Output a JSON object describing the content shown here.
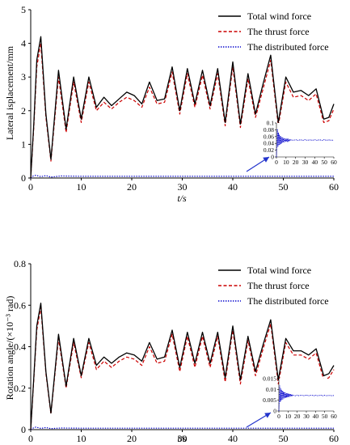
{
  "chart_data": [
    {
      "type": "line",
      "title": "",
      "xlabel": "t/s",
      "ylabel": "Lateral isplacement/mm",
      "xlim": [
        0,
        60
      ],
      "ylim": [
        0,
        5
      ],
      "xticks": [
        "0",
        "10",
        "20",
        "30",
        "40",
        "50",
        "60"
      ],
      "yticks": [
        "0",
        "1",
        "2",
        "3",
        "4",
        "5"
      ],
      "legend_position": "top-right",
      "grid": false,
      "series": [
        {
          "name": "Total wind force",
          "color": "#000000",
          "style": "solid",
          "x": [
            0,
            0.6,
            1.2,
            2,
            3,
            4,
            5.5,
            7,
            8.5,
            10,
            11.5,
            13,
            14.5,
            16,
            17.5,
            19,
            20.5,
            22,
            23.5,
            25,
            26.5,
            28,
            29.5,
            31,
            32.5,
            34,
            35.5,
            37,
            38.5,
            40,
            41.5,
            43,
            44.5,
            46,
            47.5,
            49,
            50.5,
            52,
            53.5,
            55,
            56.5,
            58,
            59,
            60
          ],
          "y": [
            0,
            1.6,
            3.5,
            4.2,
            1.9,
            0.55,
            3.2,
            1.45,
            3.0,
            1.75,
            3.0,
            2.1,
            2.4,
            2.15,
            2.35,
            2.55,
            2.45,
            2.2,
            2.85,
            2.3,
            2.35,
            3.3,
            2.0,
            3.25,
            2.2,
            3.2,
            2.15,
            3.25,
            1.65,
            3.45,
            1.6,
            3.1,
            1.9,
            2.8,
            3.65,
            1.65,
            3.0,
            2.55,
            2.6,
            2.45,
            2.65,
            1.75,
            1.8,
            2.2
          ]
        },
        {
          "name": "The thrust force",
          "color": "#cc0000",
          "style": "dashed",
          "x": [
            0,
            0.6,
            1.2,
            2,
            3,
            4,
            5.5,
            7,
            8.5,
            10,
            11.5,
            13,
            14.5,
            16,
            17.5,
            19,
            20.5,
            22,
            23.5,
            25,
            26.5,
            28,
            29.5,
            31,
            32.5,
            34,
            35.5,
            37,
            38.5,
            40,
            41.5,
            43,
            44.5,
            46,
            47.5,
            49,
            50.5,
            52,
            53.5,
            55,
            56.5,
            58,
            59,
            60
          ],
          "y": [
            0,
            1.5,
            3.3,
            4.0,
            1.8,
            0.5,
            3.0,
            1.35,
            2.85,
            1.65,
            2.85,
            2.0,
            2.25,
            2.05,
            2.25,
            2.4,
            2.3,
            2.1,
            2.7,
            2.2,
            2.25,
            3.15,
            1.9,
            3.1,
            2.1,
            3.05,
            2.05,
            3.1,
            1.55,
            3.3,
            1.5,
            2.95,
            1.8,
            2.65,
            3.5,
            1.55,
            2.85,
            2.4,
            2.45,
            2.3,
            2.5,
            1.65,
            1.7,
            2.05
          ]
        },
        {
          "name": "The distributed force",
          "color": "#0000cc",
          "style": "dotted",
          "x": [
            0,
            0.5,
            1,
            2,
            3,
            4,
            6,
            10,
            20,
            30,
            40,
            50,
            60
          ],
          "y": [
            0,
            0.06,
            0.08,
            0.04,
            0.07,
            0.03,
            0.06,
            0.05,
            0.05,
            0.05,
            0.05,
            0.05,
            0.05
          ]
        }
      ],
      "inset": {
        "type": "line",
        "xlim": [
          0,
          60
        ],
        "ylim": [
          0,
          0.1
        ],
        "xticks": [
          "0",
          "10",
          "20",
          "30",
          "40",
          "50",
          "60"
        ],
        "yticks": [
          "0",
          "0.02",
          "0.04",
          "0.06",
          "0.08",
          "0.1"
        ],
        "series_name": "The distributed force",
        "color": "#0000cc",
        "x": [
          0,
          1,
          1.5,
          2,
          2.5,
          3,
          3.5,
          4,
          4.5,
          5,
          5.5,
          6,
          6.5,
          7,
          7.5,
          8,
          8.5,
          9,
          9.5,
          10,
          10.5,
          11,
          11.5,
          12,
          12.5,
          13,
          13.5,
          14,
          14.5,
          15,
          16,
          18,
          20,
          22,
          24,
          26,
          28,
          30,
          32,
          34,
          36,
          38,
          40,
          42,
          44,
          46,
          48,
          50,
          52,
          54,
          56,
          58,
          60
        ],
        "y": [
          0,
          0.082,
          0.03,
          0.072,
          0.034,
          0.066,
          0.036,
          0.062,
          0.038,
          0.06,
          0.04,
          0.058,
          0.042,
          0.056,
          0.043,
          0.055,
          0.044,
          0.054,
          0.045,
          0.053,
          0.046,
          0.052,
          0.047,
          0.052,
          0.047,
          0.051,
          0.048,
          0.051,
          0.048,
          0.05,
          0.05,
          0.049,
          0.051,
          0.049,
          0.05,
          0.05,
          0.049,
          0.051,
          0.049,
          0.05,
          0.05,
          0.049,
          0.051,
          0.049,
          0.05,
          0.05,
          0.049,
          0.051,
          0.049,
          0.05,
          0.05,
          0.049,
          0.05
        ]
      }
    },
    {
      "type": "line",
      "title": "",
      "xlabel": "t/s",
      "ylabel": "Rotation angle/(×10⁻³ rad)",
      "xlim": [
        0,
        60
      ],
      "ylim": [
        0,
        0.8
      ],
      "xticks": [
        "0",
        "10",
        "20",
        "30",
        "40",
        "50",
        "60"
      ],
      "yticks": [
        "0",
        "0.2",
        "0.4",
        "0.6",
        "0.8"
      ],
      "legend_position": "top-right",
      "grid": false,
      "series": [
        {
          "name": "Total wind force",
          "color": "#000000",
          "style": "solid",
          "x": [
            0,
            0.6,
            1.2,
            2,
            3,
            4,
            5.5,
            7,
            8.5,
            10,
            11.5,
            13,
            14.5,
            16,
            17.5,
            19,
            20.5,
            22,
            23.5,
            25,
            26.5,
            28,
            29.5,
            31,
            32.5,
            34,
            35.5,
            37,
            38.5,
            40,
            41.5,
            43,
            44.5,
            46,
            47.5,
            49,
            50.5,
            52,
            53.5,
            55,
            56.5,
            58,
            59,
            60
          ],
          "y": [
            0,
            0.25,
            0.5,
            0.61,
            0.28,
            0.08,
            0.46,
            0.21,
            0.44,
            0.26,
            0.44,
            0.31,
            0.35,
            0.32,
            0.35,
            0.37,
            0.36,
            0.33,
            0.42,
            0.34,
            0.35,
            0.48,
            0.3,
            0.47,
            0.32,
            0.47,
            0.32,
            0.47,
            0.25,
            0.5,
            0.24,
            0.45,
            0.28,
            0.41,
            0.53,
            0.24,
            0.44,
            0.38,
            0.38,
            0.36,
            0.39,
            0.26,
            0.27,
            0.31
          ]
        },
        {
          "name": "The thrust force",
          "color": "#cc0000",
          "style": "dashed",
          "x": [
            0,
            0.6,
            1.2,
            2,
            3,
            4,
            5.5,
            7,
            8.5,
            10,
            11.5,
            13,
            14.5,
            16,
            17.5,
            19,
            20.5,
            22,
            23.5,
            25,
            26.5,
            28,
            29.5,
            31,
            32.5,
            34,
            35.5,
            37,
            38.5,
            40,
            41.5,
            43,
            44.5,
            46,
            47.5,
            49,
            50.5,
            52,
            53.5,
            55,
            56.5,
            58,
            59,
            60
          ],
          "y": [
            0,
            0.24,
            0.48,
            0.59,
            0.27,
            0.075,
            0.44,
            0.2,
            0.42,
            0.25,
            0.42,
            0.29,
            0.33,
            0.3,
            0.33,
            0.35,
            0.34,
            0.31,
            0.4,
            0.32,
            0.33,
            0.46,
            0.28,
            0.45,
            0.3,
            0.45,
            0.3,
            0.45,
            0.23,
            0.48,
            0.22,
            0.43,
            0.26,
            0.39,
            0.51,
            0.22,
            0.42,
            0.36,
            0.36,
            0.34,
            0.37,
            0.24,
            0.25,
            0.29
          ]
        },
        {
          "name": "The distributed force",
          "color": "#0000cc",
          "style": "dotted",
          "x": [
            0,
            0.5,
            1,
            2,
            3,
            4,
            6,
            10,
            20,
            30,
            40,
            50,
            60
          ],
          "y": [
            0,
            0.008,
            0.012,
            0.006,
            0.01,
            0.005,
            0.008,
            0.007,
            0.007,
            0.007,
            0.007,
            0.007,
            0.007
          ]
        }
      ],
      "inset": {
        "type": "line",
        "xlim": [
          0,
          60
        ],
        "ylim": [
          0,
          0.015
        ],
        "xticks": [
          "0",
          "10",
          "20",
          "30",
          "40",
          "50",
          "60"
        ],
        "yticks": [
          "0",
          "0.005",
          "0.01",
          "0.015"
        ],
        "series_name": "The distributed force",
        "color": "#0000cc",
        "x": [
          0,
          1,
          1.5,
          2,
          2.5,
          3,
          3.5,
          4,
          4.5,
          5,
          5.5,
          6,
          6.5,
          7,
          7.5,
          8,
          8.5,
          9,
          9.5,
          10,
          10.5,
          11,
          11.5,
          12,
          12.5,
          13,
          13.5,
          14,
          14.5,
          15,
          16,
          18,
          20,
          22,
          24,
          26,
          28,
          30,
          32,
          34,
          36,
          38,
          40,
          42,
          44,
          46,
          48,
          50,
          52,
          54,
          56,
          58,
          60
        ],
        "y": [
          0,
          0.0118,
          0.0042,
          0.0105,
          0.0048,
          0.0098,
          0.0052,
          0.0093,
          0.0055,
          0.009,
          0.0058,
          0.0087,
          0.006,
          0.0085,
          0.0062,
          0.0083,
          0.0063,
          0.0082,
          0.0064,
          0.0081,
          0.0065,
          0.008,
          0.0066,
          0.0079,
          0.0067,
          0.0078,
          0.0068,
          0.0077,
          0.0069,
          0.0075,
          0.0073,
          0.0071,
          0.0074,
          0.0071,
          0.0073,
          0.0072,
          0.0071,
          0.0074,
          0.0071,
          0.0072,
          0.0073,
          0.0071,
          0.0073,
          0.0071,
          0.0072,
          0.0073,
          0.0071,
          0.0073,
          0.0071,
          0.0072,
          0.0072,
          0.0071,
          0.0072
        ]
      }
    }
  ]
}
